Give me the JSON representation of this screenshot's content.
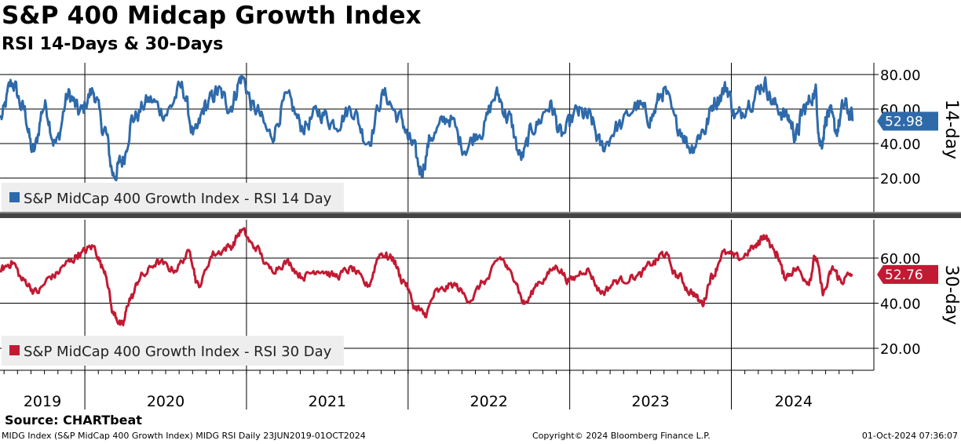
{
  "title": "S&P 400 Midcap Growth Index",
  "subtitle": "RSI 14-Days & 30-Days",
  "source": "Source: CHARTbeat",
  "footer": {
    "left": "MIDG Index (S&P MidCap 400 Growth Index) MIDG RSI  Daily 23JUN2019-01OCT2024",
    "center": "Copyright© 2024 Bloomberg Finance L.P.",
    "right": "01-Oct-2024 07:36:07"
  },
  "chart_data": [
    {
      "type": "line",
      "name": "RSI 14 Day",
      "legend": "S&P MidCap 400 Growth Index - RSI 14 Day",
      "panel_label": "14-day",
      "last_value_label": "52.98",
      "color": "#2e6aaa",
      "ylim": [
        5,
        85
      ],
      "yticks": [
        20,
        40,
        60,
        80
      ],
      "ytick_labels": [
        "20.00",
        "40.00",
        "60.00",
        "80.00"
      ],
      "grid": true,
      "x_range": [
        "2019-06-23",
        "2024-10-01"
      ],
      "anchors": [
        [
          2019.48,
          55
        ],
        [
          2019.55,
          75
        ],
        [
          2019.62,
          60
        ],
        [
          2019.68,
          35
        ],
        [
          2019.75,
          62
        ],
        [
          2019.82,
          40
        ],
        [
          2019.9,
          68
        ],
        [
          2019.97,
          58
        ],
        [
          2020.05,
          70
        ],
        [
          2020.12,
          48
        ],
        [
          2020.18,
          22
        ],
        [
          2020.23,
          30
        ],
        [
          2020.3,
          55
        ],
        [
          2020.4,
          65
        ],
        [
          2020.5,
          58
        ],
        [
          2020.6,
          72
        ],
        [
          2020.68,
          45
        ],
        [
          2020.75,
          62
        ],
        [
          2020.82,
          70
        ],
        [
          2020.9,
          62
        ],
        [
          2020.97,
          78
        ],
        [
          2021.05,
          60
        ],
        [
          2021.15,
          45
        ],
        [
          2021.25,
          65
        ],
        [
          2021.35,
          50
        ],
        [
          2021.45,
          58
        ],
        [
          2021.55,
          52
        ],
        [
          2021.65,
          60
        ],
        [
          2021.75,
          42
        ],
        [
          2021.85,
          68
        ],
        [
          2021.95,
          55
        ],
        [
          2022.02,
          40
        ],
        [
          2022.08,
          25
        ],
        [
          2022.15,
          45
        ],
        [
          2022.25,
          55
        ],
        [
          2022.35,
          38
        ],
        [
          2022.45,
          48
        ],
        [
          2022.55,
          68
        ],
        [
          2022.62,
          55
        ],
        [
          2022.7,
          32
        ],
        [
          2022.78,
          50
        ],
        [
          2022.88,
          62
        ],
        [
          2022.95,
          45
        ],
        [
          2023.05,
          58
        ],
        [
          2023.12,
          55
        ],
        [
          2023.2,
          38
        ],
        [
          2023.3,
          50
        ],
        [
          2023.42,
          62
        ],
        [
          2023.5,
          55
        ],
        [
          2023.58,
          70
        ],
        [
          2023.67,
          50
        ],
        [
          2023.75,
          38
        ],
        [
          2023.83,
          48
        ],
        [
          2023.9,
          65
        ],
        [
          2023.97,
          72
        ],
        [
          2024.03,
          55
        ],
        [
          2024.12,
          65
        ],
        [
          2024.2,
          75
        ],
        [
          2024.27,
          62
        ],
        [
          2024.35,
          55
        ],
        [
          2024.4,
          45
        ],
        [
          2024.45,
          60
        ],
        [
          2024.52,
          70
        ],
        [
          2024.55,
          40
        ],
        [
          2024.6,
          58
        ],
        [
          2024.65,
          48
        ],
        [
          2024.7,
          62
        ],
        [
          2024.75,
          55
        ]
      ],
      "last_value": 52.98
    },
    {
      "type": "line",
      "name": "RSI 30 Day",
      "legend": "S&P MidCap 400 Growth Index - RSI 30 Day",
      "panel_label": "30-day",
      "last_value_label": "52.76",
      "color": "#c21a33",
      "ylim": [
        10,
        75
      ],
      "yticks": [
        20,
        40,
        60
      ],
      "ytick_labels": [
        "20.00",
        "40.00",
        "60.00"
      ],
      "grid": true,
      "x_range": [
        "2019-06-23",
        "2024-10-01"
      ],
      "anchors": [
        [
          2019.48,
          55
        ],
        [
          2019.55,
          58
        ],
        [
          2019.62,
          50
        ],
        [
          2019.7,
          45
        ],
        [
          2019.8,
          52
        ],
        [
          2019.9,
          58
        ],
        [
          2019.97,
          62
        ],
        [
          2020.05,
          65
        ],
        [
          2020.12,
          55
        ],
        [
          2020.18,
          35
        ],
        [
          2020.23,
          30
        ],
        [
          2020.28,
          42
        ],
        [
          2020.35,
          52
        ],
        [
          2020.45,
          58
        ],
        [
          2020.55,
          55
        ],
        [
          2020.65,
          62
        ],
        [
          2020.7,
          48
        ],
        [
          2020.8,
          62
        ],
        [
          2020.9,
          65
        ],
        [
          2020.97,
          72
        ],
        [
          2021.05,
          65
        ],
        [
          2021.15,
          55
        ],
        [
          2021.25,
          58
        ],
        [
          2021.35,
          52
        ],
        [
          2021.45,
          55
        ],
        [
          2021.55,
          52
        ],
        [
          2021.65,
          55
        ],
        [
          2021.75,
          48
        ],
        [
          2021.83,
          62
        ],
        [
          2021.9,
          60
        ],
        [
          2021.97,
          50
        ],
        [
          2022.05,
          38
        ],
        [
          2022.1,
          35
        ],
        [
          2022.18,
          45
        ],
        [
          2022.28,
          48
        ],
        [
          2022.38,
          42
        ],
        [
          2022.48,
          50
        ],
        [
          2022.57,
          60
        ],
        [
          2022.65,
          52
        ],
        [
          2022.72,
          40
        ],
        [
          2022.82,
          50
        ],
        [
          2022.92,
          56
        ],
        [
          2023.0,
          50
        ],
        [
          2023.1,
          55
        ],
        [
          2023.2,
          45
        ],
        [
          2023.3,
          50
        ],
        [
          2023.42,
          52
        ],
        [
          2023.52,
          58
        ],
        [
          2023.58,
          62
        ],
        [
          2023.67,
          52
        ],
        [
          2023.75,
          45
        ],
        [
          2023.82,
          40
        ],
        [
          2023.88,
          52
        ],
        [
          2023.95,
          62
        ],
        [
          2024.05,
          60
        ],
        [
          2024.15,
          65
        ],
        [
          2024.2,
          70
        ],
        [
          2024.28,
          62
        ],
        [
          2024.33,
          52
        ],
        [
          2024.4,
          55
        ],
        [
          2024.48,
          50
        ],
        [
          2024.52,
          60
        ],
        [
          2024.57,
          45
        ],
        [
          2024.63,
          55
        ],
        [
          2024.68,
          50
        ],
        [
          2024.75,
          53
        ]
      ],
      "last_value": 52.76
    }
  ],
  "x_axis": {
    "years": [
      "2019",
      "2020",
      "2021",
      "2022",
      "2023",
      "2024"
    ],
    "year_start": 2019.475,
    "year_end": 2024.77
  }
}
